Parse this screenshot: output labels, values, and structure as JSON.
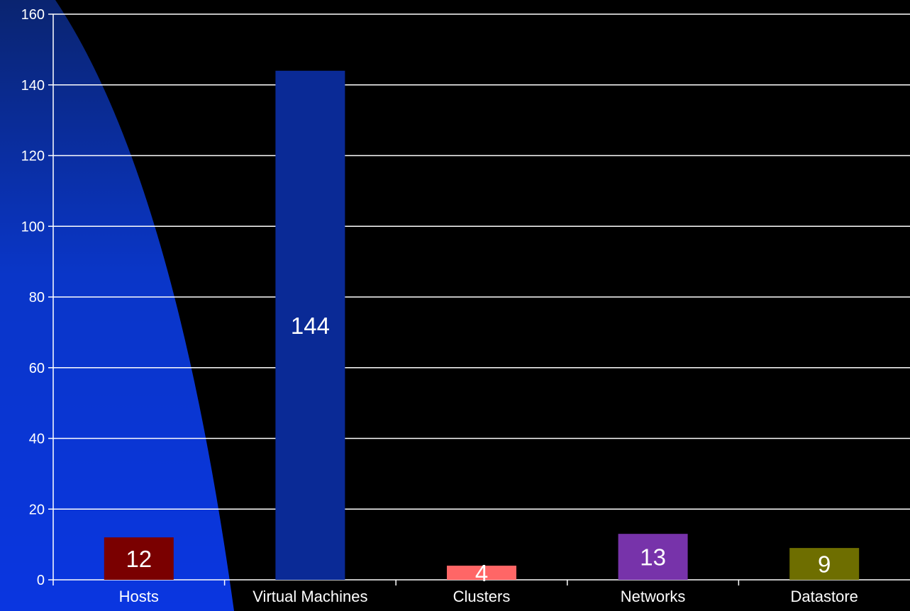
{
  "chart_data": {
    "type": "bar",
    "categories": [
      "Hosts",
      "Virtual Machines",
      "Clusters",
      "Networks",
      "Datastore"
    ],
    "values": [
      12,
      144,
      4,
      13,
      9
    ],
    "data_labels": [
      "12",
      "144",
      "4",
      "13",
      "9"
    ],
    "bar_colors": [
      "#7a0000",
      "#0a2a96",
      "#ff6666",
      "#7733aa",
      "#6e6e00"
    ],
    "ylim": [
      0,
      160
    ],
    "yticks": [
      0,
      20,
      40,
      60,
      80,
      100,
      120,
      140,
      160
    ],
    "ytick_labels": [
      "0",
      "20",
      "40",
      "60",
      "80",
      "100",
      "120",
      "140",
      "160"
    ],
    "grid": true,
    "title": "",
    "xlabel": "",
    "ylabel": "",
    "colors": {
      "background": "#000000",
      "gridline": "#ffffff",
      "text": "#ffffff",
      "backdrop_arc": "#0a36c8"
    }
  }
}
